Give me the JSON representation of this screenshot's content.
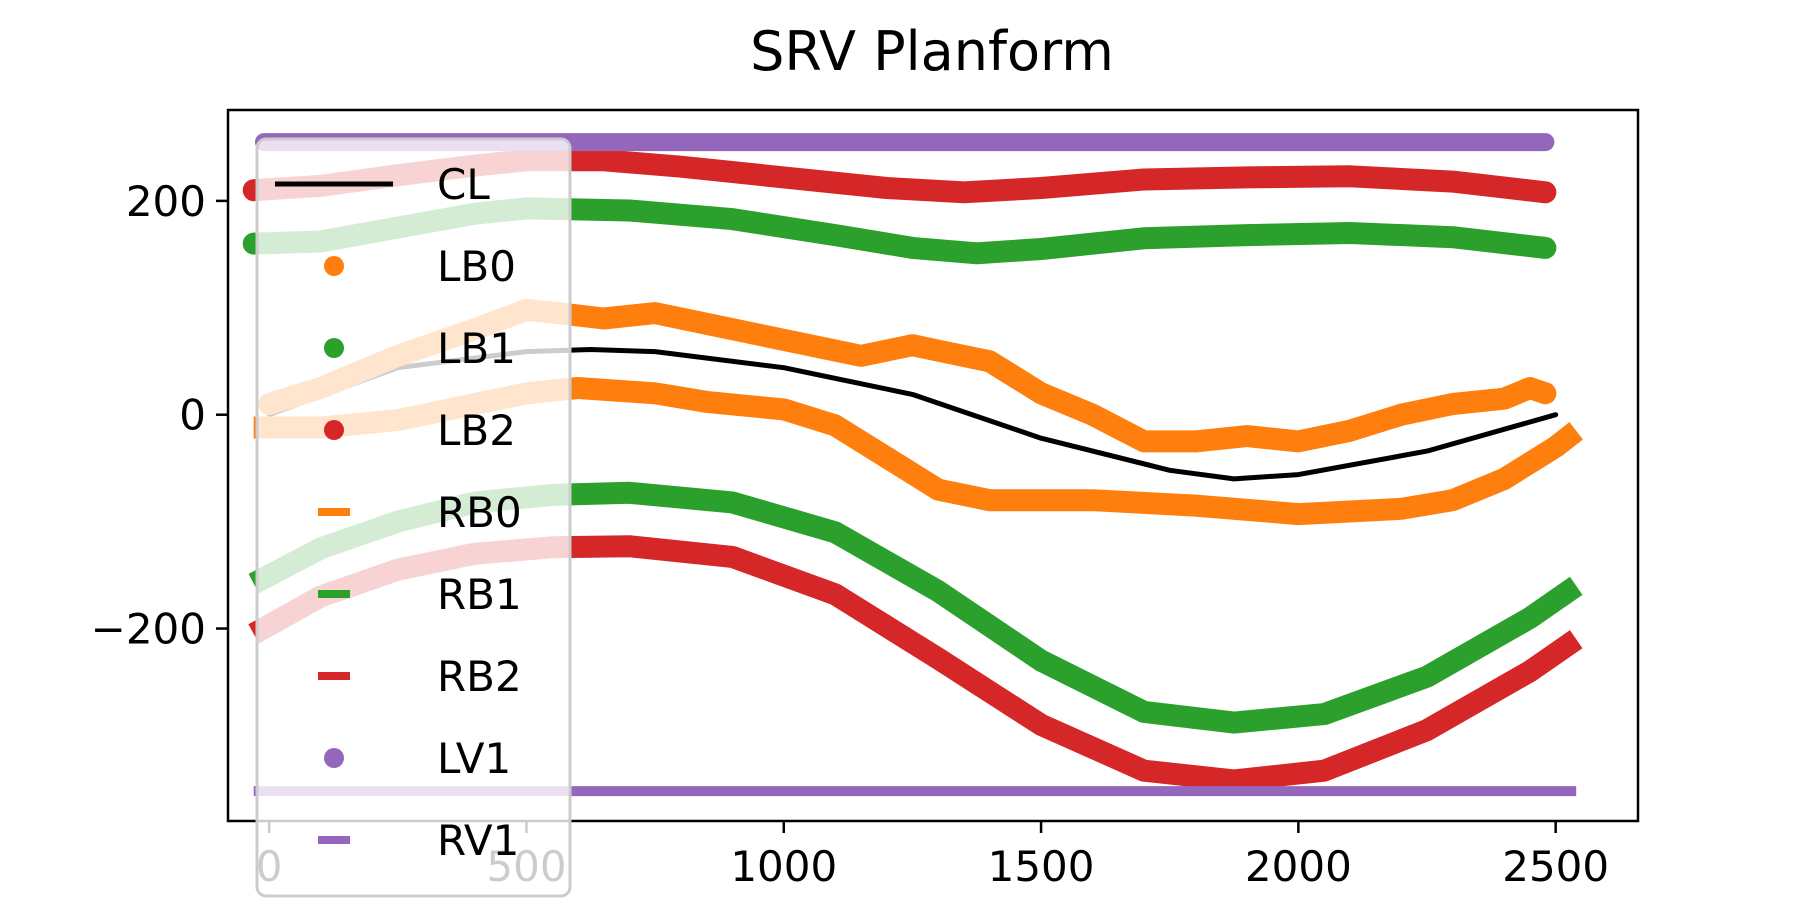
{
  "chart_data": {
    "type": "line",
    "title": "SRV Planform",
    "xlabel": "",
    "ylabel": "",
    "xlim": [
      -80,
      2660
    ],
    "ylim": [
      -380,
      285
    ],
    "xticks": [
      0,
      500,
      1000,
      1500,
      2000,
      2500
    ],
    "yticks": [
      -200,
      0,
      200
    ],
    "xtick_labels": [
      "0",
      "500",
      "1000",
      "1500",
      "2000",
      "2500"
    ],
    "ytick_labels": [
      "−200",
      "0",
      "200"
    ],
    "grid": false,
    "legend_position": "upper-left",
    "series": [
      {
        "name": "CL",
        "color": "#000000",
        "marker": "line",
        "x": [
          0,
          250,
          500,
          625,
          750,
          1000,
          1250,
          1500,
          1750,
          1875,
          2000,
          2250,
          2500
        ],
        "y": [
          0,
          44,
          59,
          61,
          59,
          44,
          19,
          -22,
          -52,
          -60,
          -56,
          -34,
          0
        ]
      },
      {
        "name": "LB0",
        "color": "#ff7f0e",
        "marker": "dot",
        "x": [
          0,
          100,
          250,
          400,
          500,
          560,
          650,
          750,
          850,
          950,
          1050,
          1150,
          1250,
          1300,
          1400,
          1500,
          1600,
          1700,
          1800,
          1900,
          2000,
          2100,
          2200,
          2300,
          2400,
          2450,
          2480
        ],
        "y": [
          10,
          25,
          55,
          80,
          98,
          95,
          90,
          95,
          85,
          75,
          65,
          55,
          65,
          60,
          50,
          20,
          0,
          -25,
          -25,
          -20,
          -25,
          -15,
          0,
          10,
          15,
          25,
          20
        ]
      },
      {
        "name": "LB1",
        "color": "#2ca02c",
        "marker": "dot",
        "x": [
          -30,
          100,
          250,
          400,
          500,
          700,
          900,
          1100,
          1250,
          1375,
          1500,
          1700,
          1900,
          2100,
          2300,
          2480
        ],
        "y": [
          160,
          162,
          175,
          188,
          193,
          191,
          183,
          168,
          156,
          151,
          155,
          165,
          168,
          170,
          166,
          156
        ]
      },
      {
        "name": "LB2",
        "color": "#d62728",
        "marker": "dot",
        "x": [
          -30,
          100,
          250,
          400,
          500,
          650,
          800,
          1000,
          1200,
          1350,
          1500,
          1700,
          1900,
          2100,
          2300,
          2480
        ],
        "y": [
          210,
          214,
          224,
          233,
          238,
          238,
          232,
          222,
          212,
          208,
          212,
          220,
          222,
          223,
          218,
          208
        ]
      },
      {
        "name": "RB0",
        "color": "#ff7f0e",
        "marker": "dash",
        "x": [
          -30,
          100,
          250,
          400,
          500,
          600,
          750,
          850,
          1000,
          1100,
          1200,
          1300,
          1400,
          1500,
          1600,
          1800,
          2000,
          2200,
          2300,
          2400,
          2500,
          2540
        ],
        "y": [
          -12,
          -12,
          -5,
          10,
          20,
          25,
          20,
          12,
          5,
          -10,
          -40,
          -70,
          -80,
          -80,
          -80,
          -85,
          -93,
          -88,
          -80,
          -60,
          -30,
          -15
        ]
      },
      {
        "name": "RB1",
        "color": "#2ca02c",
        "marker": "dash",
        "x": [
          -30,
          100,
          250,
          400,
          550,
          700,
          900,
          1100,
          1300,
          1500,
          1700,
          1875,
          2050,
          2250,
          2450,
          2540
        ],
        "y": [
          -158,
          -125,
          -100,
          -82,
          -75,
          -73,
          -82,
          -110,
          -165,
          -230,
          -278,
          -288,
          -280,
          -245,
          -190,
          -160
        ]
      },
      {
        "name": "RB2",
        "color": "#d62728",
        "marker": "dash",
        "x": [
          -30,
          100,
          250,
          400,
          550,
          700,
          900,
          1100,
          1300,
          1500,
          1700,
          1875,
          2050,
          2250,
          2450,
          2540
        ],
        "y": [
          -205,
          -170,
          -145,
          -130,
          -124,
          -123,
          -133,
          -168,
          -228,
          -290,
          -333,
          -342,
          -333,
          -295,
          -240,
          -210
        ]
      },
      {
        "name": "LV1",
        "color": "#9467bd",
        "marker": "dot",
        "x": [
          -10,
          2480
        ],
        "y": [
          255,
          255
        ]
      },
      {
        "name": "RV1",
        "color": "#9467bd",
        "marker": "dash",
        "x": [
          -30,
          2540
        ],
        "y": [
          -352,
          -352
        ]
      }
    ]
  }
}
